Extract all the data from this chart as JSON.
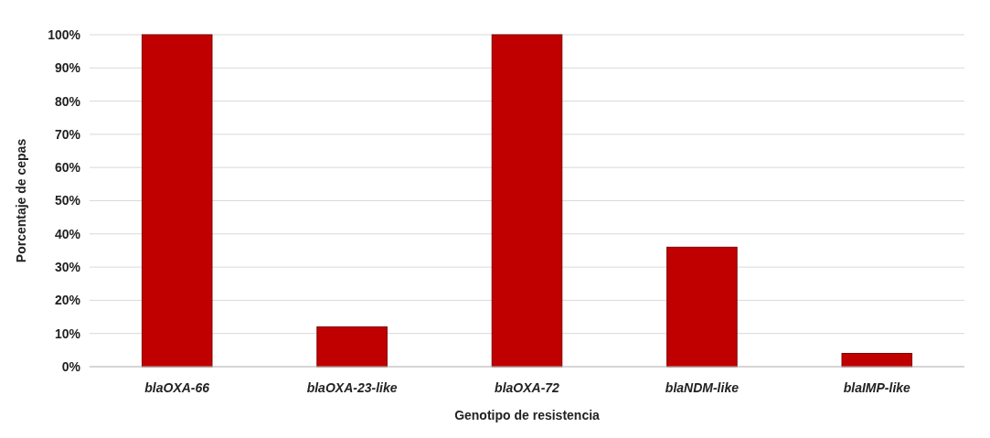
{
  "chart_data": {
    "type": "bar",
    "xlabel": "Genotipo de resistencia",
    "ylabel": "Porcentaje de cepas",
    "categories": [
      "blaOXA-66",
      "blaOXA-23-like",
      "blaOXA-72",
      "blaNDM-like",
      "blaIMP-like"
    ],
    "values": [
      100,
      12,
      100,
      36,
      4
    ],
    "color": "#c00000",
    "ylim": [
      0,
      100
    ],
    "yticks": [
      {
        "value": 0,
        "label": "0%"
      },
      {
        "value": 10,
        "label": "10%"
      },
      {
        "value": 20,
        "label": "20%"
      },
      {
        "value": 30,
        "label": "30%"
      },
      {
        "value": 40,
        "label": "40%"
      },
      {
        "value": 50,
        "label": "50%"
      },
      {
        "value": 60,
        "label": "60%"
      },
      {
        "value": 70,
        "label": "70%"
      },
      {
        "value": 80,
        "label": "80%"
      },
      {
        "value": 90,
        "label": "90%"
      },
      {
        "value": 100,
        "label": "100%"
      }
    ],
    "grid": "y"
  }
}
